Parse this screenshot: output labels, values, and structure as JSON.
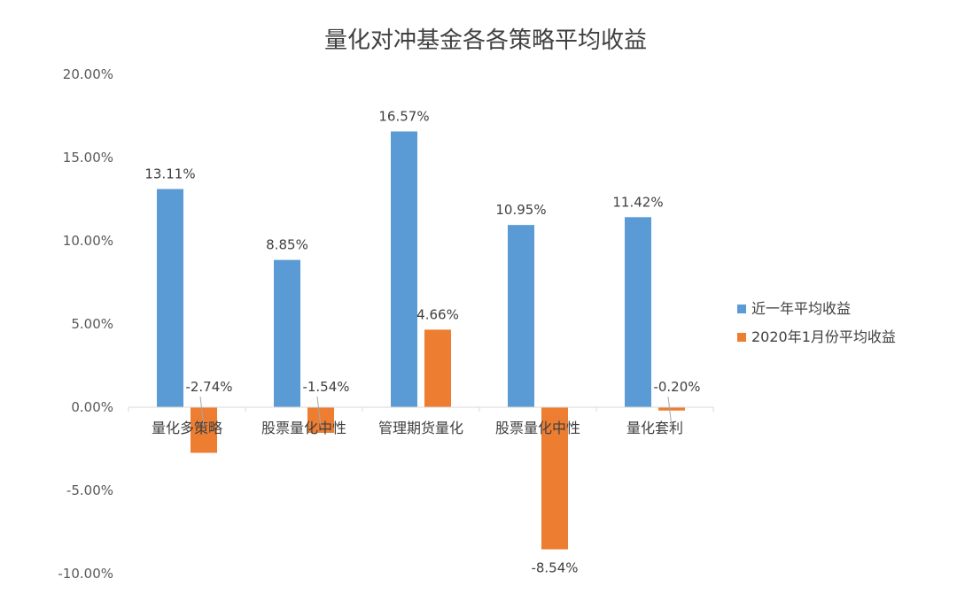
{
  "chart_data": {
    "type": "bar",
    "title": "量化对冲基金各各策略平均收益",
    "xlabel": "",
    "ylabel": "",
    "categories": [
      "量化多策略",
      "股票量化中性",
      "管理期货量化",
      "股票量化中性",
      "量化套利"
    ],
    "series": [
      {
        "name": "近一年平均收益",
        "color": "#5B9BD5",
        "values": [
          13.11,
          8.85,
          16.57,
          10.95,
          11.42
        ]
      },
      {
        "name": "2020年1月份平均收益",
        "color": "#ED7D31",
        "values": [
          -2.74,
          -1.54,
          4.66,
          -8.54,
          -0.2
        ]
      }
    ],
    "ylim": [
      -10,
      20
    ],
    "yticks": [
      20,
      15,
      10,
      5,
      0,
      -5,
      -10
    ],
    "ytick_labels": [
      "20.00%",
      "15.00%",
      "10.00%",
      "5.00%",
      "0.00%",
      "-5.00%",
      "-10.00%"
    ],
    "data_labels": [
      [
        "13.11%",
        "8.85%",
        "16.57%",
        "10.95%",
        "11.42%"
      ],
      [
        "-2.74%",
        "-1.54%",
        "4.66%",
        "-8.54%",
        "-0.20%"
      ]
    ],
    "grid": false,
    "legend_position": "right"
  }
}
